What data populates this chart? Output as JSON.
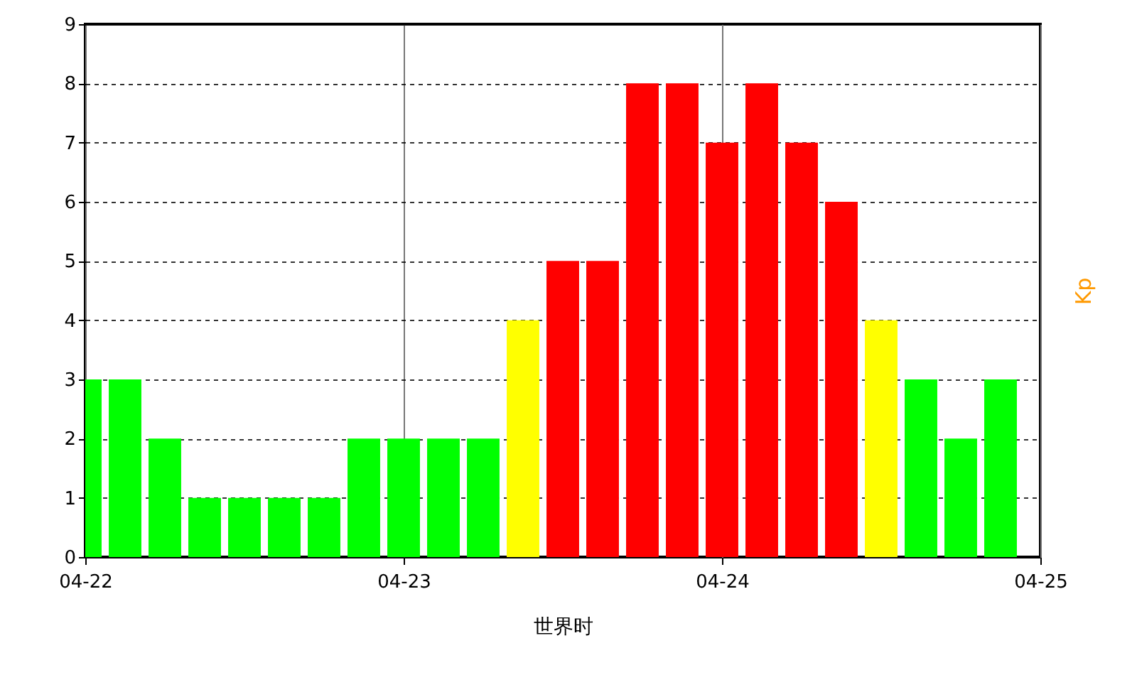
{
  "chart_data": {
    "type": "bar",
    "xlabel": "世界时",
    "ylabel": "Kp",
    "categories": [
      "04-22",
      null,
      null,
      null,
      null,
      null,
      null,
      null,
      "04-23",
      null,
      null,
      null,
      null,
      null,
      null,
      null,
      "04-24",
      null,
      null,
      null,
      null,
      null,
      null,
      null,
      "04-25"
    ],
    "values": [
      3,
      3,
      2,
      1,
      1,
      1,
      1,
      2,
      2,
      2,
      2,
      4,
      5,
      5,
      8,
      8,
      7,
      8,
      7,
      6,
      4,
      3,
      2,
      3,
      null
    ],
    "colors": [
      "#00ff00",
      "#00ff00",
      "#00ff00",
      "#00ff00",
      "#00ff00",
      "#00ff00",
      "#00ff00",
      "#00ff00",
      "#00ff00",
      "#00ff00",
      "#00ff00",
      "#ffff00",
      "#ff0000",
      "#ff0000",
      "#ff0000",
      "#ff0000",
      "#ff0000",
      "#ff0000",
      "#ff0000",
      "#ff0000",
      "#ffff00",
      "#00ff00",
      "#00ff00",
      "#00ff00",
      null
    ],
    "ylim": [
      0,
      9
    ],
    "yticks": [
      0,
      1,
      2,
      3,
      4,
      5,
      6,
      7,
      8,
      9
    ],
    "grid": true
  }
}
